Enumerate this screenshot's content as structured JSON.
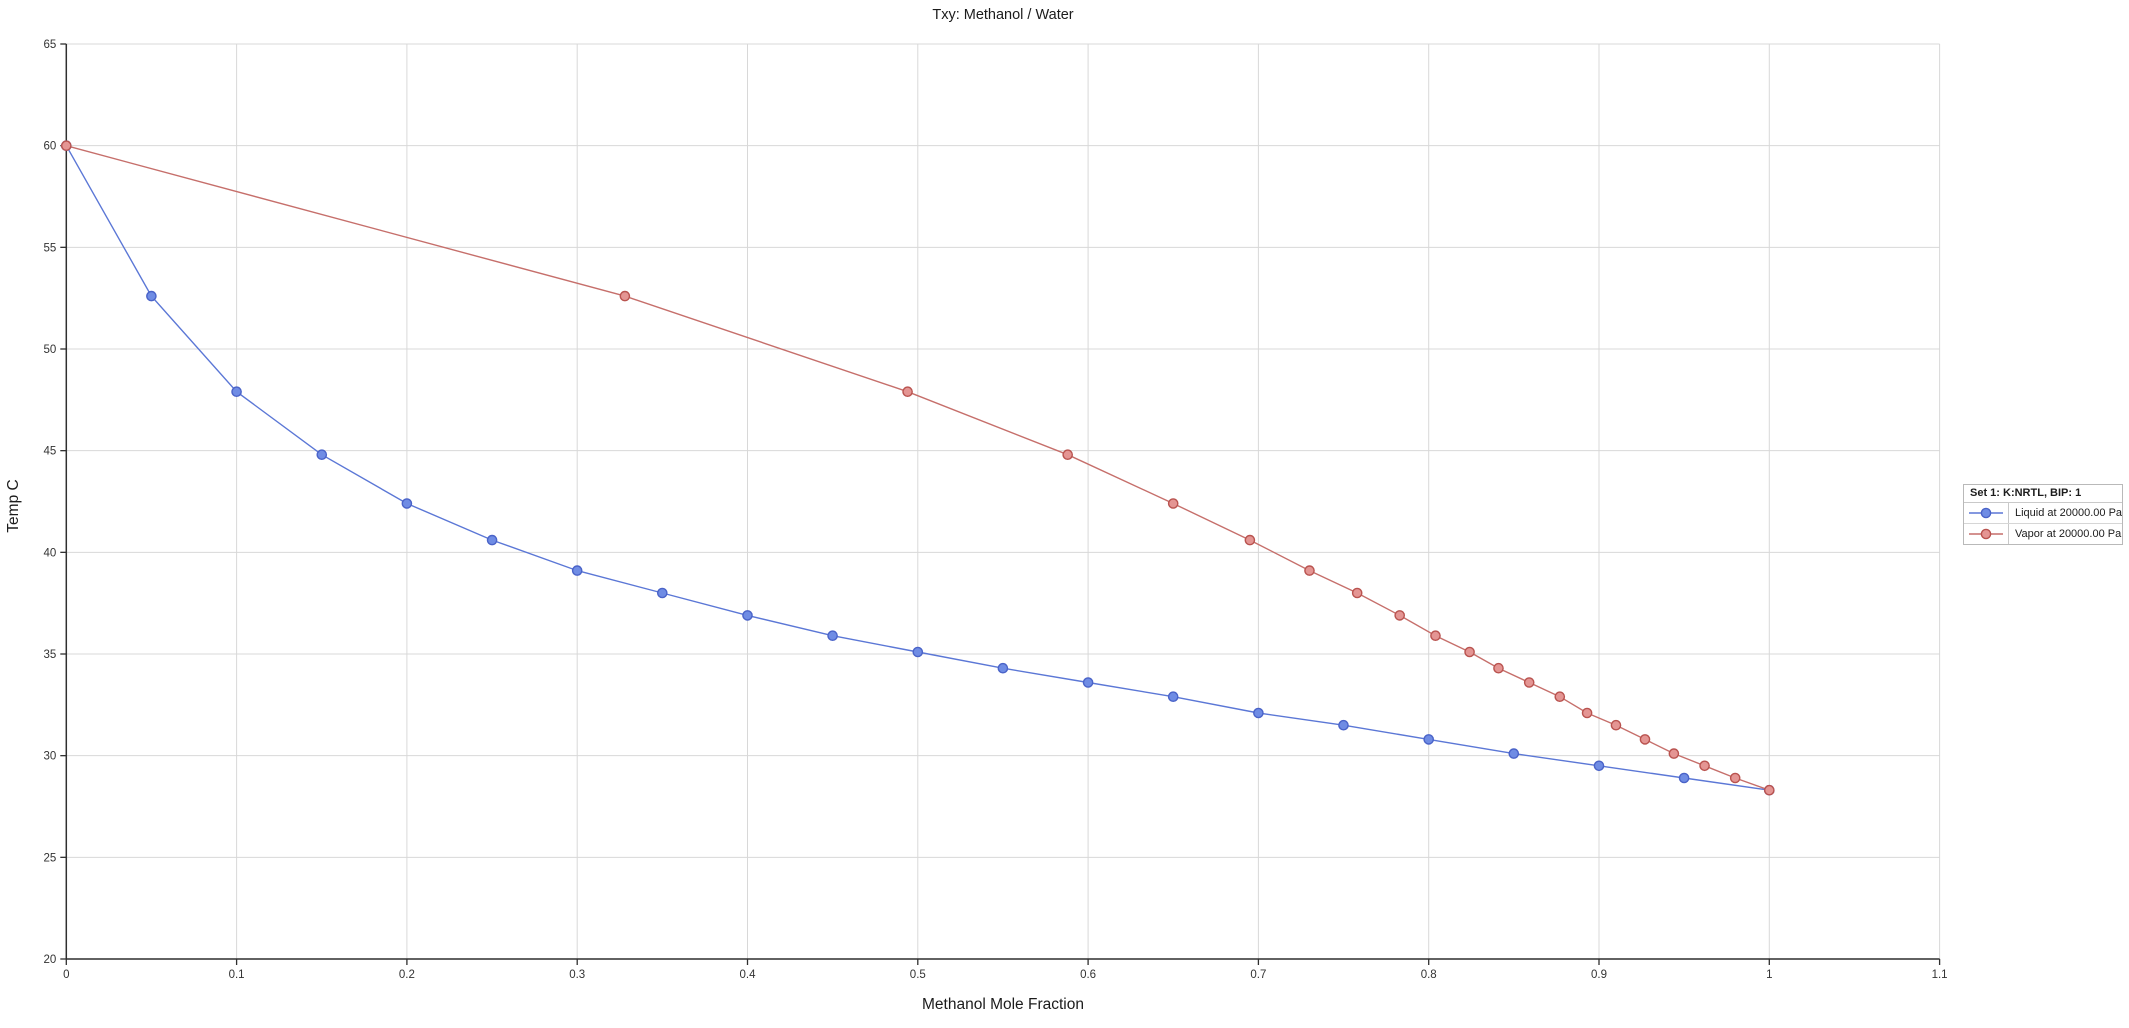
{
  "chart_data": {
    "type": "line",
    "title": "Txy: Methanol / Water",
    "xlabel": "Methanol Mole Fraction",
    "ylabel": "Temp C",
    "xlim": [
      0,
      1.1
    ],
    "ylim": [
      20,
      65
    ],
    "x_tick_step": 0.1,
    "y_tick_step": 5,
    "grid": true,
    "legend_position": "right-outside",
    "legend": {
      "header": "Set 1: K:NRTL, BIP: 1"
    },
    "colors": {
      "grid": "#d8d8d8",
      "axis": "#2f2f2f",
      "tick_text": "#333333"
    },
    "series": [
      {
        "name": "Liquid at 20000.00 Pa",
        "phase": "liquid",
        "line_color": "#5b77d6",
        "marker_fill": "#6f8ce4",
        "marker_edge": "#4a63c8",
        "points": [
          [
            0,
            60.0
          ],
          [
            0.05,
            52.6
          ],
          [
            0.1,
            47.9
          ],
          [
            0.15,
            44.8
          ],
          [
            0.2,
            42.4
          ],
          [
            0.25,
            40.6
          ],
          [
            0.3,
            39.1
          ],
          [
            0.35,
            38.0
          ],
          [
            0.4,
            36.9
          ],
          [
            0.45,
            35.9
          ],
          [
            0.5,
            35.1
          ],
          [
            0.55,
            34.3
          ],
          [
            0.6,
            33.6
          ],
          [
            0.65,
            32.9
          ],
          [
            0.7,
            32.1
          ],
          [
            0.75,
            31.5
          ],
          [
            0.8,
            30.8
          ],
          [
            0.85,
            30.1
          ],
          [
            0.9,
            29.5
          ],
          [
            0.95,
            28.9
          ],
          [
            1.0,
            28.3
          ]
        ]
      },
      {
        "name": "Vapor at 20000.00 Pa",
        "phase": "vapor",
        "line_color": "#c66f6b",
        "marker_fill": "#e49593",
        "marker_edge": "#b9534f",
        "points": [
          [
            0,
            60.0
          ],
          [
            0.328,
            52.6
          ],
          [
            0.494,
            47.9
          ],
          [
            0.588,
            44.8
          ],
          [
            0.65,
            42.4
          ],
          [
            0.695,
            40.6
          ],
          [
            0.73,
            39.1
          ],
          [
            0.758,
            38.0
          ],
          [
            0.783,
            36.9
          ],
          [
            0.804,
            35.9
          ],
          [
            0.824,
            35.1
          ],
          [
            0.841,
            34.3
          ],
          [
            0.859,
            33.6
          ],
          [
            0.877,
            32.9
          ],
          [
            0.893,
            32.1
          ],
          [
            0.91,
            31.5
          ],
          [
            0.927,
            30.8
          ],
          [
            0.944,
            30.1
          ],
          [
            0.962,
            29.5
          ],
          [
            0.98,
            28.9
          ],
          [
            1.0,
            28.3
          ]
        ]
      }
    ]
  }
}
